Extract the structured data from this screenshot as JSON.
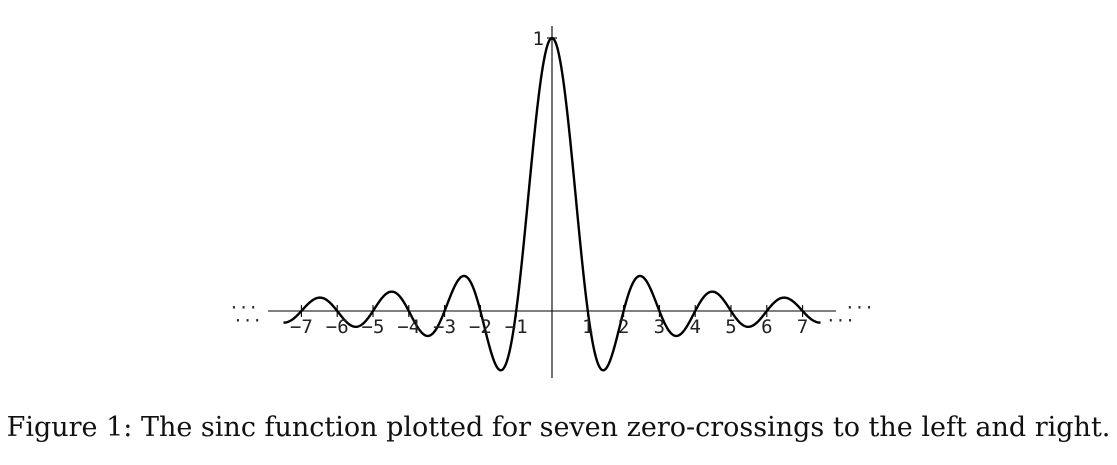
{
  "chart_data": {
    "type": "line",
    "function": "sinc",
    "xlim": [
      -7.5,
      7.5
    ],
    "ylim": [
      -0.25,
      1.0
    ],
    "x_ticks": [
      -7,
      -6,
      -5,
      -4,
      -3,
      -2,
      -1,
      1,
      2,
      3,
      4,
      5,
      6,
      7
    ],
    "x_tick_labels": [
      "−7",
      "−6",
      "−5",
      "−4",
      "−3",
      "−2",
      "−1",
      "1",
      "2",
      "3",
      "4",
      "5",
      "6",
      "7"
    ],
    "y_ticks": [
      1
    ],
    "y_tick_labels": [
      "1"
    ],
    "axis_ellipsis": "···",
    "grid": false,
    "legend": null,
    "curve_color": "#000000"
  },
  "caption": "Figure 1: The sinc function plotted for seven zero-crossings to the left and right."
}
